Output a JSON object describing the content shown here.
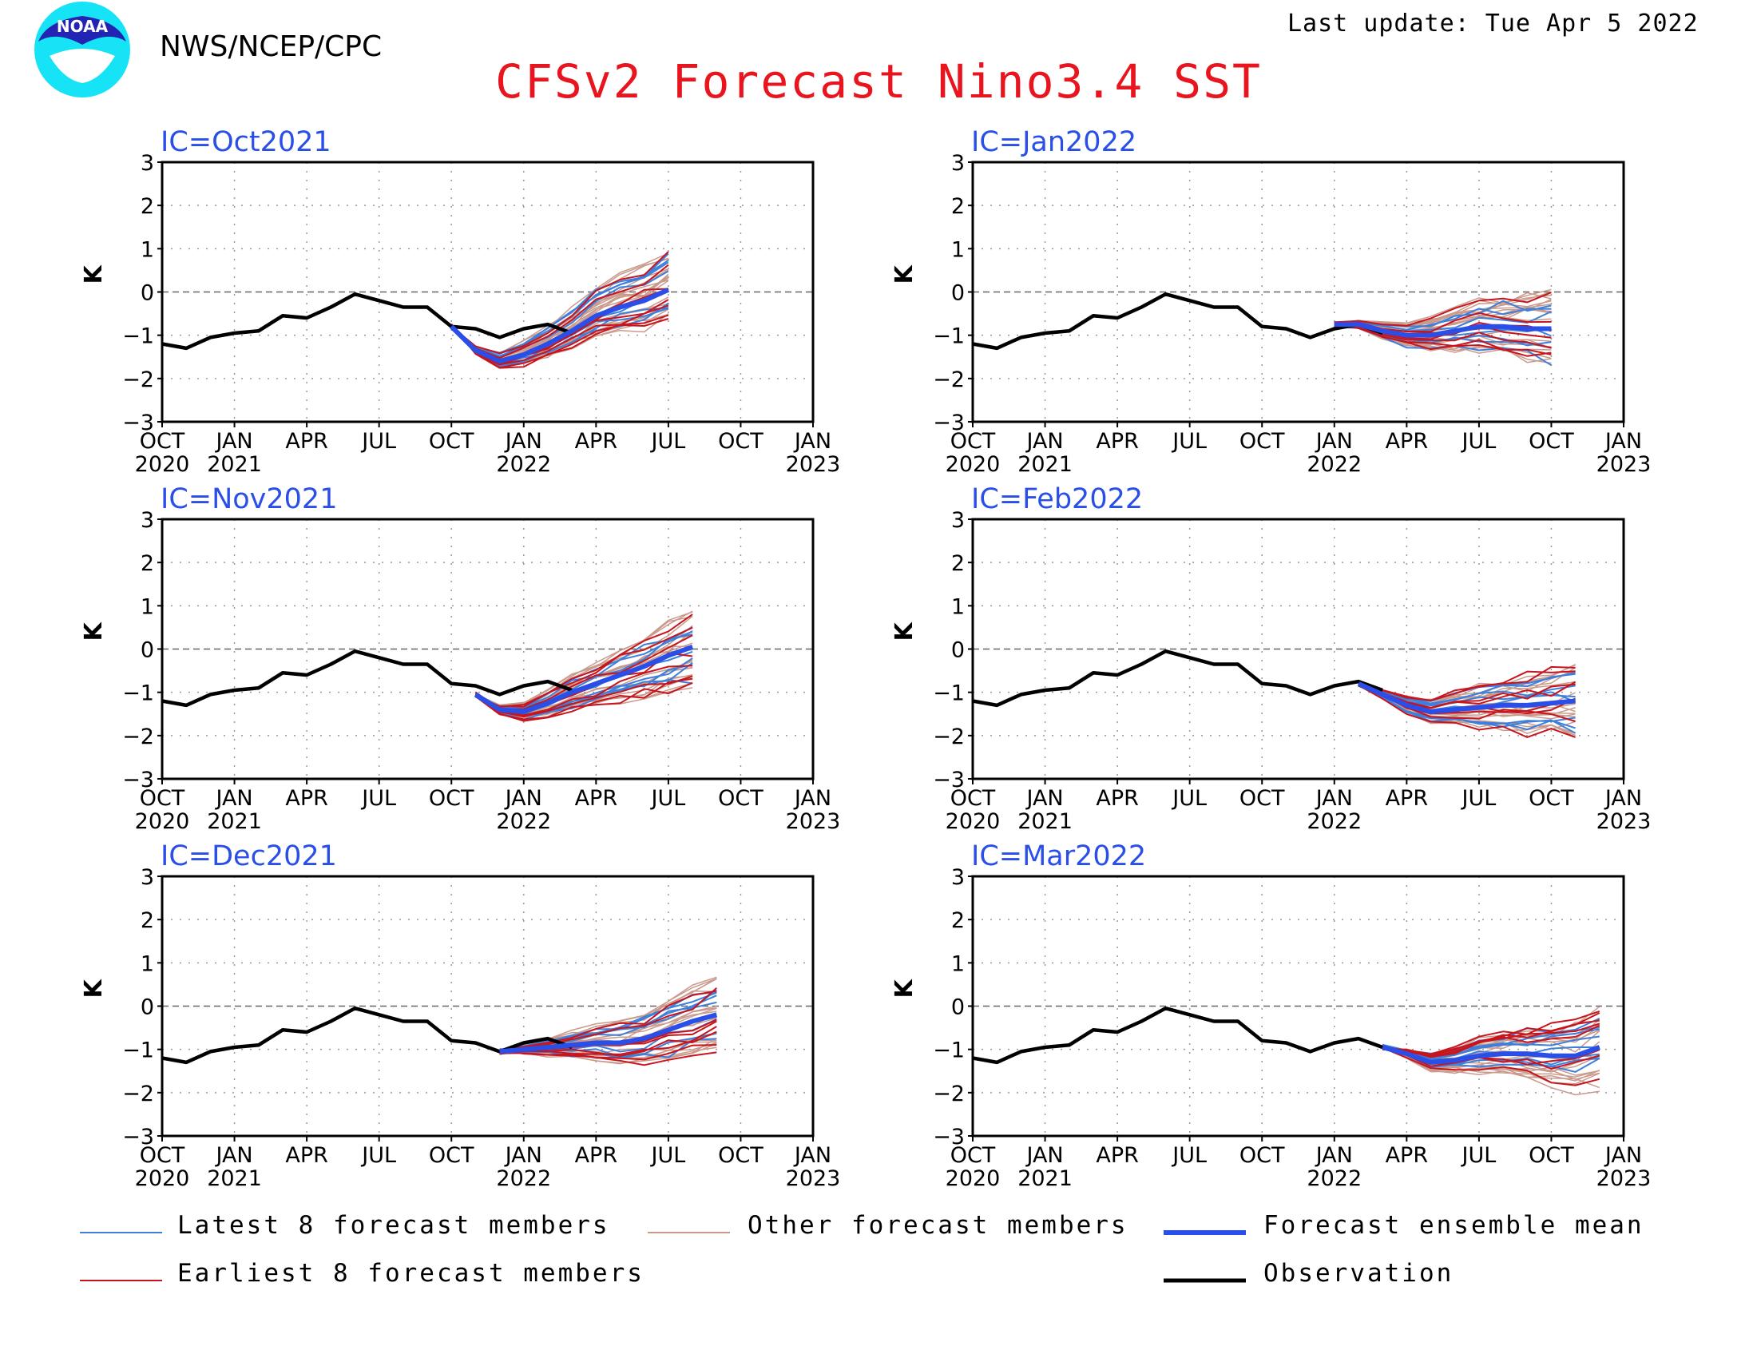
{
  "header": {
    "logo_text": "NOAA",
    "agency": "NWS/NCEP/CPC",
    "last_update": "Last update: Tue Apr 5 2022",
    "title": "CFSv2 Forecast Nino3.4 SST"
  },
  "colors": {
    "latest": "#3d7fdc",
    "earliest": "#c8141c",
    "other": "#c99a8c",
    "mean": "#2a4fe8",
    "observation": "#000000",
    "panel_title": "#2a4fe8",
    "title": "#e8141e"
  },
  "legend": {
    "latest": "Latest 8 forecast members",
    "other": "Other forecast members",
    "mean": "Forecast ensemble mean",
    "earliest": "Earliest 8 forecast members",
    "observation": "Observation"
  },
  "axes": {
    "ylabel": "K",
    "yticks": [
      "3",
      "2",
      "1",
      "0",
      "−1",
      "−2",
      "−3"
    ],
    "xticks": [
      {
        "top": "OCT",
        "bottom": "2020"
      },
      {
        "top": "JAN",
        "bottom": "2021"
      },
      {
        "top": "APR",
        "bottom": ""
      },
      {
        "top": "JUL",
        "bottom": ""
      },
      {
        "top": "OCT",
        "bottom": ""
      },
      {
        "top": "JAN",
        "bottom": "2022"
      },
      {
        "top": "APR",
        "bottom": ""
      },
      {
        "top": "JUL",
        "bottom": ""
      },
      {
        "top": "OCT",
        "bottom": ""
      },
      {
        "top": "JAN",
        "bottom": "2023"
      }
    ]
  },
  "chart_data": [
    {
      "type": "line",
      "title": "IC=Oct2021",
      "ylabel": "K",
      "ylim": [
        -3,
        3
      ],
      "x_range": [
        "2020-10",
        "2023-01"
      ],
      "ic_month_index": 12,
      "lead_months": 9,
      "mean": [
        -0.8,
        -1.35,
        -1.6,
        -1.45,
        -1.2,
        -0.9,
        -0.55,
        -0.35,
        -0.2,
        0.05
      ]
    },
    {
      "type": "line",
      "title": "IC=Jan2022",
      "ylabel": "K",
      "ylim": [
        -3,
        3
      ],
      "x_range": [
        "2020-10",
        "2023-01"
      ],
      "ic_month_index": 15,
      "lead_months": 9,
      "mean": [
        -0.75,
        -0.75,
        -0.9,
        -1.0,
        -1.0,
        -0.9,
        -0.8,
        -0.8,
        -0.85,
        -0.85
      ]
    },
    {
      "type": "line",
      "title": "IC=Nov2021",
      "ylabel": "K",
      "ylim": [
        -3,
        3
      ],
      "x_range": [
        "2020-10",
        "2023-01"
      ],
      "ic_month_index": 13,
      "lead_months": 9,
      "mean": [
        -1.05,
        -1.4,
        -1.45,
        -1.25,
        -1.0,
        -0.8,
        -0.6,
        -0.4,
        -0.15,
        0.05
      ]
    },
    {
      "type": "line",
      "title": "IC=Feb2022",
      "ylabel": "K",
      "ylim": [
        -3,
        3
      ],
      "x_range": [
        "2020-10",
        "2023-01"
      ],
      "ic_month_index": 16,
      "lead_months": 9,
      "mean": [
        -0.8,
        -1.05,
        -1.3,
        -1.45,
        -1.4,
        -1.35,
        -1.3,
        -1.3,
        -1.25,
        -1.2
      ]
    },
    {
      "type": "line",
      "title": "IC=Dec2021",
      "ylabel": "K",
      "ylim": [
        -3,
        3
      ],
      "x_range": [
        "2020-10",
        "2023-01"
      ],
      "ic_month_index": 14,
      "lead_months": 9,
      "mean": [
        -1.05,
        -1.0,
        -0.95,
        -0.9,
        -0.85,
        -0.85,
        -0.75,
        -0.55,
        -0.35,
        -0.2
      ]
    },
    {
      "type": "line",
      "title": "IC=Mar2022",
      "ylabel": "K",
      "ylim": [
        -3,
        3
      ],
      "x_range": [
        "2020-10",
        "2023-01"
      ],
      "ic_month_index": 17,
      "lead_months": 9,
      "mean": [
        -0.95,
        -1.1,
        -1.3,
        -1.25,
        -1.15,
        -1.1,
        -1.1,
        -1.15,
        -1.15,
        -0.95
      ]
    }
  ],
  "observation": [
    -1.2,
    -1.3,
    -1.05,
    -0.95,
    -0.9,
    -0.55,
    -0.6,
    -0.35,
    -0.05,
    -0.2,
    -0.35,
    -0.35,
    -0.8,
    -0.85,
    -1.05,
    -0.85,
    -0.75,
    -0.95
  ]
}
